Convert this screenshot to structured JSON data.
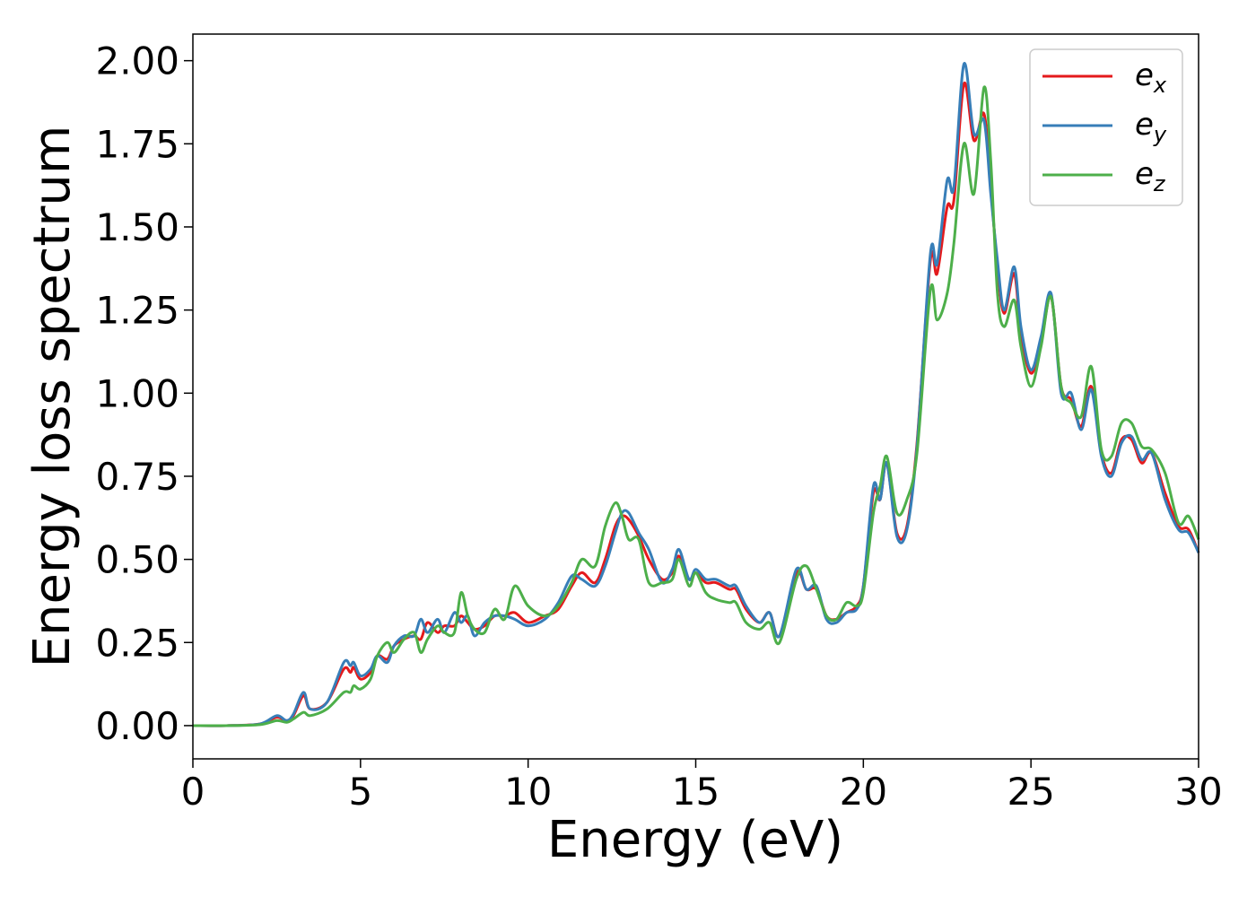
{
  "chart_data": {
    "type": "line",
    "xlabel": "Energy (eV)",
    "ylabel": "Energy loss spectrum",
    "xlim": [
      0,
      30
    ],
    "ylim": [
      -0.1,
      2.08
    ],
    "xticks": [
      0,
      5,
      10,
      15,
      20,
      25,
      30
    ],
    "yticks": [
      0.0,
      0.25,
      0.5,
      0.75,
      1.0,
      1.25,
      1.5,
      1.75,
      2.0
    ],
    "xtick_labels": [
      "0",
      "5",
      "10",
      "15",
      "20",
      "25",
      "30"
    ],
    "ytick_labels": [
      "0.00",
      "0.25",
      "0.50",
      "0.75",
      "1.00",
      "1.25",
      "1.50",
      "1.75",
      "2.00"
    ],
    "grid": false,
    "legend_position": "top-right",
    "series": [
      {
        "name": "e",
        "subscript": "x",
        "color": "#e41a1c",
        "points": [
          [
            0,
            0
          ],
          [
            1,
            0
          ],
          [
            2,
            0.005
          ],
          [
            2.5,
            0.025
          ],
          [
            2.8,
            0.015
          ],
          [
            3.0,
            0.03
          ],
          [
            3.3,
            0.09
          ],
          [
            3.5,
            0.05
          ],
          [
            4.0,
            0.07
          ],
          [
            4.5,
            0.17
          ],
          [
            4.7,
            0.16
          ],
          [
            4.8,
            0.175
          ],
          [
            5.0,
            0.14
          ],
          [
            5.3,
            0.16
          ],
          [
            5.5,
            0.21
          ],
          [
            5.8,
            0.2
          ],
          [
            6.0,
            0.24
          ],
          [
            6.3,
            0.26
          ],
          [
            6.6,
            0.27
          ],
          [
            6.8,
            0.26
          ],
          [
            7.0,
            0.31
          ],
          [
            7.3,
            0.28
          ],
          [
            7.5,
            0.3
          ],
          [
            7.8,
            0.3
          ],
          [
            8.0,
            0.33
          ],
          [
            8.2,
            0.31
          ],
          [
            8.4,
            0.29
          ],
          [
            8.7,
            0.3
          ],
          [
            9.0,
            0.33
          ],
          [
            9.3,
            0.33
          ],
          [
            9.6,
            0.34
          ],
          [
            10.0,
            0.31
          ],
          [
            10.5,
            0.33
          ],
          [
            10.9,
            0.35
          ],
          [
            11.3,
            0.42
          ],
          [
            11.6,
            0.46
          ],
          [
            12.0,
            0.43
          ],
          [
            12.3,
            0.5
          ],
          [
            12.6,
            0.6
          ],
          [
            12.8,
            0.63
          ],
          [
            13.0,
            0.62
          ],
          [
            13.3,
            0.57
          ],
          [
            13.6,
            0.5
          ],
          [
            14.0,
            0.44
          ],
          [
            14.3,
            0.46
          ],
          [
            14.5,
            0.51
          ],
          [
            14.8,
            0.44
          ],
          [
            15.0,
            0.46
          ],
          [
            15.3,
            0.43
          ],
          [
            15.6,
            0.43
          ],
          [
            16.0,
            0.41
          ],
          [
            16.2,
            0.41
          ],
          [
            16.5,
            0.35
          ],
          [
            16.9,
            0.31
          ],
          [
            17.2,
            0.34
          ],
          [
            17.5,
            0.27
          ],
          [
            18.0,
            0.46
          ],
          [
            18.3,
            0.41
          ],
          [
            18.6,
            0.41
          ],
          [
            18.9,
            0.33
          ],
          [
            19.2,
            0.32
          ],
          [
            19.5,
            0.34
          ],
          [
            19.8,
            0.36
          ],
          [
            20.0,
            0.42
          ],
          [
            20.3,
            0.7
          ],
          [
            20.5,
            0.68
          ],
          [
            20.7,
            0.79
          ],
          [
            21.0,
            0.58
          ],
          [
            21.3,
            0.6
          ],
          [
            21.6,
            0.85
          ],
          [
            22.0,
            1.4
          ],
          [
            22.2,
            1.36
          ],
          [
            22.5,
            1.56
          ],
          [
            22.7,
            1.58
          ],
          [
            23.0,
            1.93
          ],
          [
            23.3,
            1.76
          ],
          [
            23.6,
            1.84
          ],
          [
            23.8,
            1.62
          ],
          [
            24.0,
            1.38
          ],
          [
            24.2,
            1.24
          ],
          [
            24.5,
            1.36
          ],
          [
            24.7,
            1.18
          ],
          [
            25.0,
            1.06
          ],
          [
            25.3,
            1.15
          ],
          [
            25.6,
            1.29
          ],
          [
            25.9,
            1.02
          ],
          [
            26.2,
            0.98
          ],
          [
            26.5,
            0.9
          ],
          [
            26.8,
            1.02
          ],
          [
            27.1,
            0.82
          ],
          [
            27.4,
            0.76
          ],
          [
            27.7,
            0.86
          ],
          [
            28.0,
            0.86
          ],
          [
            28.3,
            0.79
          ],
          [
            28.6,
            0.82
          ],
          [
            29.0,
            0.7
          ],
          [
            29.4,
            0.6
          ],
          [
            29.7,
            0.59
          ],
          [
            30.0,
            0.52
          ]
        ]
      },
      {
        "name": "e",
        "subscript": "y",
        "color": "#377eb8",
        "points": [
          [
            0,
            0
          ],
          [
            1,
            0
          ],
          [
            2,
            0.005
          ],
          [
            2.5,
            0.03
          ],
          [
            2.8,
            0.015
          ],
          [
            3.0,
            0.035
          ],
          [
            3.3,
            0.1
          ],
          [
            3.5,
            0.05
          ],
          [
            4.0,
            0.07
          ],
          [
            4.5,
            0.19
          ],
          [
            4.7,
            0.18
          ],
          [
            4.8,
            0.19
          ],
          [
            5.0,
            0.15
          ],
          [
            5.3,
            0.17
          ],
          [
            5.5,
            0.21
          ],
          [
            5.8,
            0.19
          ],
          [
            6.0,
            0.24
          ],
          [
            6.3,
            0.27
          ],
          [
            6.6,
            0.27
          ],
          [
            6.8,
            0.32
          ],
          [
            7.0,
            0.28
          ],
          [
            7.3,
            0.32
          ],
          [
            7.5,
            0.28
          ],
          [
            7.8,
            0.34
          ],
          [
            8.0,
            0.31
          ],
          [
            8.2,
            0.33
          ],
          [
            8.4,
            0.27
          ],
          [
            8.7,
            0.31
          ],
          [
            9.0,
            0.33
          ],
          [
            9.3,
            0.33
          ],
          [
            9.6,
            0.32
          ],
          [
            10.0,
            0.3
          ],
          [
            10.5,
            0.32
          ],
          [
            10.9,
            0.37
          ],
          [
            11.3,
            0.45
          ],
          [
            11.6,
            0.44
          ],
          [
            12.0,
            0.42
          ],
          [
            12.3,
            0.48
          ],
          [
            12.6,
            0.58
          ],
          [
            12.8,
            0.64
          ],
          [
            13.0,
            0.64
          ],
          [
            13.3,
            0.58
          ],
          [
            13.6,
            0.53
          ],
          [
            14.0,
            0.43
          ],
          [
            14.3,
            0.47
          ],
          [
            14.5,
            0.53
          ],
          [
            14.8,
            0.44
          ],
          [
            15.0,
            0.47
          ],
          [
            15.3,
            0.44
          ],
          [
            15.6,
            0.44
          ],
          [
            16.0,
            0.42
          ],
          [
            16.2,
            0.42
          ],
          [
            16.5,
            0.36
          ],
          [
            16.9,
            0.31
          ],
          [
            17.2,
            0.34
          ],
          [
            17.5,
            0.27
          ],
          [
            18.0,
            0.47
          ],
          [
            18.3,
            0.41
          ],
          [
            18.6,
            0.42
          ],
          [
            18.9,
            0.32
          ],
          [
            19.2,
            0.31
          ],
          [
            19.5,
            0.34
          ],
          [
            19.8,
            0.35
          ],
          [
            20.0,
            0.42
          ],
          [
            20.3,
            0.72
          ],
          [
            20.5,
            0.68
          ],
          [
            20.7,
            0.79
          ],
          [
            21.0,
            0.57
          ],
          [
            21.3,
            0.59
          ],
          [
            21.6,
            0.84
          ],
          [
            22.0,
            1.42
          ],
          [
            22.2,
            1.39
          ],
          [
            22.5,
            1.64
          ],
          [
            22.7,
            1.62
          ],
          [
            23.0,
            1.99
          ],
          [
            23.3,
            1.78
          ],
          [
            23.6,
            1.82
          ],
          [
            23.8,
            1.6
          ],
          [
            24.0,
            1.4
          ],
          [
            24.2,
            1.25
          ],
          [
            24.5,
            1.38
          ],
          [
            24.7,
            1.2
          ],
          [
            25.0,
            1.07
          ],
          [
            25.3,
            1.17
          ],
          [
            25.6,
            1.3
          ],
          [
            25.9,
            1.0
          ],
          [
            26.2,
            1.0
          ],
          [
            26.5,
            0.89
          ],
          [
            26.8,
            1.01
          ],
          [
            27.1,
            0.81
          ],
          [
            27.4,
            0.75
          ],
          [
            27.7,
            0.85
          ],
          [
            28.0,
            0.87
          ],
          [
            28.3,
            0.8
          ],
          [
            28.6,
            0.82
          ],
          [
            29.0,
            0.68
          ],
          [
            29.4,
            0.59
          ],
          [
            29.7,
            0.58
          ],
          [
            30.0,
            0.52
          ]
        ]
      },
      {
        "name": "e",
        "subscript": "z",
        "color": "#4daf4a",
        "points": [
          [
            0,
            0
          ],
          [
            1,
            0
          ],
          [
            2,
            0.003
          ],
          [
            2.5,
            0.015
          ],
          [
            2.8,
            0.01
          ],
          [
            3.0,
            0.02
          ],
          [
            3.3,
            0.04
          ],
          [
            3.5,
            0.03
          ],
          [
            4.0,
            0.05
          ],
          [
            4.5,
            0.1
          ],
          [
            4.7,
            0.1
          ],
          [
            4.8,
            0.12
          ],
          [
            5.0,
            0.11
          ],
          [
            5.3,
            0.14
          ],
          [
            5.5,
            0.21
          ],
          [
            5.8,
            0.25
          ],
          [
            6.0,
            0.22
          ],
          [
            6.3,
            0.26
          ],
          [
            6.6,
            0.28
          ],
          [
            6.8,
            0.22
          ],
          [
            7.0,
            0.26
          ],
          [
            7.3,
            0.3
          ],
          [
            7.5,
            0.28
          ],
          [
            7.8,
            0.28
          ],
          [
            8.0,
            0.4
          ],
          [
            8.2,
            0.33
          ],
          [
            8.4,
            0.29
          ],
          [
            8.7,
            0.28
          ],
          [
            9.0,
            0.35
          ],
          [
            9.3,
            0.32
          ],
          [
            9.6,
            0.42
          ],
          [
            10.0,
            0.36
          ],
          [
            10.5,
            0.33
          ],
          [
            10.9,
            0.36
          ],
          [
            11.3,
            0.43
          ],
          [
            11.6,
            0.5
          ],
          [
            12.0,
            0.48
          ],
          [
            12.3,
            0.6
          ],
          [
            12.6,
            0.67
          ],
          [
            12.8,
            0.63
          ],
          [
            13.0,
            0.56
          ],
          [
            13.3,
            0.56
          ],
          [
            13.6,
            0.43
          ],
          [
            14.0,
            0.43
          ],
          [
            14.3,
            0.44
          ],
          [
            14.5,
            0.5
          ],
          [
            14.8,
            0.42
          ],
          [
            15.0,
            0.46
          ],
          [
            15.3,
            0.4
          ],
          [
            15.6,
            0.38
          ],
          [
            16.0,
            0.37
          ],
          [
            16.2,
            0.37
          ],
          [
            16.5,
            0.31
          ],
          [
            16.9,
            0.29
          ],
          [
            17.2,
            0.31
          ],
          [
            17.5,
            0.25
          ],
          [
            18.0,
            0.44
          ],
          [
            18.3,
            0.48
          ],
          [
            18.6,
            0.41
          ],
          [
            18.9,
            0.33
          ],
          [
            19.2,
            0.32
          ],
          [
            19.5,
            0.37
          ],
          [
            19.8,
            0.36
          ],
          [
            20.0,
            0.4
          ],
          [
            20.3,
            0.64
          ],
          [
            20.5,
            0.72
          ],
          [
            20.7,
            0.81
          ],
          [
            21.0,
            0.64
          ],
          [
            21.3,
            0.68
          ],
          [
            21.6,
            0.82
          ],
          [
            22.0,
            1.31
          ],
          [
            22.2,
            1.22
          ],
          [
            22.5,
            1.3
          ],
          [
            22.7,
            1.45
          ],
          [
            23.0,
            1.75
          ],
          [
            23.3,
            1.6
          ],
          [
            23.6,
            1.92
          ],
          [
            23.8,
            1.7
          ],
          [
            24.0,
            1.3
          ],
          [
            24.2,
            1.2
          ],
          [
            24.5,
            1.28
          ],
          [
            24.7,
            1.14
          ],
          [
            25.0,
            1.02
          ],
          [
            25.3,
            1.14
          ],
          [
            25.6,
            1.29
          ],
          [
            25.9,
            1.02
          ],
          [
            26.2,
            0.97
          ],
          [
            26.5,
            0.93
          ],
          [
            26.8,
            1.08
          ],
          [
            27.1,
            0.83
          ],
          [
            27.4,
            0.81
          ],
          [
            27.7,
            0.91
          ],
          [
            28.0,
            0.91
          ],
          [
            28.3,
            0.84
          ],
          [
            28.6,
            0.83
          ],
          [
            29.0,
            0.76
          ],
          [
            29.4,
            0.61
          ],
          [
            29.7,
            0.63
          ],
          [
            30.0,
            0.56
          ]
        ]
      }
    ]
  }
}
